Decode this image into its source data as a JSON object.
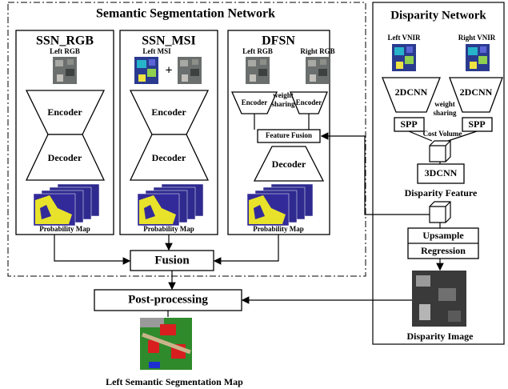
{
  "semantic_network": {
    "title": "Semantic Segmentation Network",
    "ssn_rgb": {
      "title": "SSN_RGB",
      "input": "Left RGB",
      "encoder": "Encoder",
      "decoder": "Decoder",
      "output": "Probability Map"
    },
    "ssn_msi": {
      "title": "SSN_MSI",
      "input": "Left MSI",
      "plus": "+",
      "encoder": "Encoder",
      "decoder": "Decoder",
      "output": "Probability Map"
    },
    "dfsn": {
      "title": "DFSN",
      "left_input": "Left RGB",
      "right_input": "Right RGB",
      "left_encoder": "Encoder",
      "right_encoder": "Encoder",
      "weight_sharing": [
        "weight",
        "sharing"
      ],
      "feature_fusion": "Feature Fusion",
      "decoder": "Decoder",
      "output": "Probability Map"
    }
  },
  "fusion": "Fusion",
  "post_processing": "Post-processing",
  "output": "Left Semantic Segmentation Map",
  "disparity_network": {
    "title": "Disparity Network",
    "left_input": "Left VNIR",
    "right_input": "Right VNIR",
    "left_cnn": "2DCNN",
    "right_cnn": "2DCNN",
    "weight_sharing": [
      "weight",
      "sharing"
    ],
    "left_spp": "SPP",
    "right_spp": "SPP",
    "cost_volume": "Cost Volume",
    "cnn3d": "3DCNN",
    "disparity_feature": "Disparity Feature",
    "upsample": "Upsample",
    "regression": "Regression",
    "disparity_image": "Disparity Image"
  }
}
